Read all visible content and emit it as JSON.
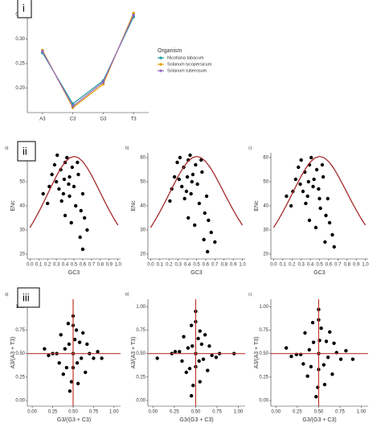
{
  "chart_data": [
    {
      "type": "line",
      "panel_label": "i",
      "categories": [
        "A3",
        "C3",
        "G3",
        "T3"
      ],
      "ylim": [
        0.15,
        0.36
      ],
      "yticks": [
        {
          "value": 0.2,
          "label": "0.20"
        },
        {
          "value": 0.25,
          "label": "0.25"
        },
        {
          "value": 0.3,
          "label": "0.30"
        },
        {
          "value": 0.35,
          "label": "0.35"
        }
      ],
      "legend_title": "Organism",
      "series": [
        {
          "name": "Nicotiana tabacum",
          "color": "#1b9e9e",
          "values": [
            0.272,
            0.168,
            0.215,
            0.345
          ]
        },
        {
          "name": "Solanum lycopersicum",
          "color": "#e69f00",
          "values": [
            0.277,
            0.16,
            0.208,
            0.353
          ]
        },
        {
          "name": "Solanum tuberosum",
          "color": "#9467bd",
          "values": [
            0.275,
            0.163,
            0.212,
            0.349
          ]
        }
      ]
    },
    {
      "type": "enc",
      "panel_label": "ii",
      "label": "a)",
      "xlabel": "GC3",
      "ylabel": "ENc",
      "xlim": [
        -0.03,
        1.03
      ],
      "ylim": [
        18,
        62
      ],
      "xticks": [
        {
          "value": 0,
          "label": "0.0"
        },
        {
          "value": 0.1,
          "label": "0.1"
        },
        {
          "value": 0.2,
          "label": "0.2"
        },
        {
          "value": 0.3,
          "label": "0.3"
        },
        {
          "value": 0.4,
          "label": "0.4"
        },
        {
          "value": 0.5,
          "label": "0.5"
        },
        {
          "value": 0.6,
          "label": "0.6"
        },
        {
          "value": 0.7,
          "label": "0.7"
        },
        {
          "value": 0.8,
          "label": "0.8"
        },
        {
          "value": 0.9,
          "label": "0.9"
        },
        {
          "value": 1,
          "label": "1.0"
        }
      ],
      "yticks": [
        20,
        30,
        40,
        50,
        60
      ],
      "x": [
        0.35,
        0.4,
        0.45,
        0.3,
        0.5,
        0.38,
        0.42,
        0.28,
        0.55,
        0.33,
        0.48,
        0.6,
        0.25,
        0.36,
        0.44,
        0.52,
        0.58,
        0.4,
        0.62,
        0.47,
        0.22,
        0.31,
        0.39,
        0.54,
        0.65,
        0.2,
        0.57,
        0.6,
        0.15,
        0.45
      ],
      "y": [
        55,
        58,
        52,
        50,
        48,
        45,
        60,
        57,
        53,
        47,
        56,
        45,
        53,
        42,
        49,
        40,
        38,
        36,
        35,
        33,
        48,
        61,
        51,
        58,
        30,
        41,
        27,
        22,
        45,
        44
      ],
      "curve_x": [
        0,
        0.05,
        0.1,
        0.15,
        0.2,
        0.25,
        0.3,
        0.35,
        0.4,
        0.45,
        0.5,
        0.55,
        0.6,
        0.65,
        0.7,
        0.75,
        0.8,
        0.85,
        0.9,
        0.95,
        1
      ],
      "curve_y": [
        31,
        34.09,
        37.47,
        41.08,
        44.85,
        48.65,
        52.3,
        55.56,
        58.17,
        59.88,
        60.5,
        59.98,
        58.37,
        55.86,
        52.7,
        49.15,
        45.45,
        41.78,
        38.27,
        34.99,
        32
      ]
    },
    {
      "type": "enc",
      "label": "b)",
      "xlabel": "GC3",
      "ylabel": "ENc",
      "xlim": [
        -0.03,
        1.03
      ],
      "ylim": [
        18,
        62
      ],
      "xticks": [
        {
          "value": 0,
          "label": "0.0"
        },
        {
          "value": 0.1,
          "label": "0.1"
        },
        {
          "value": 0.2,
          "label": "0.2"
        },
        {
          "value": 0.3,
          "label": "0.3"
        },
        {
          "value": 0.4,
          "label": "0.4"
        },
        {
          "value": 0.5,
          "label": "0.5"
        },
        {
          "value": 0.6,
          "label": "0.6"
        },
        {
          "value": 0.7,
          "label": "0.7"
        },
        {
          "value": 0.8,
          "label": "0.8"
        },
        {
          "value": 0.9,
          "label": "0.9"
        },
        {
          "value": 1,
          "label": "1.0"
        }
      ],
      "yticks": [
        20,
        30,
        40,
        50,
        60
      ],
      "x": [
        0.36,
        0.41,
        0.46,
        0.31,
        0.51,
        0.39,
        0.43,
        0.29,
        0.56,
        0.34,
        0.49,
        0.61,
        0.26,
        0.37,
        0.45,
        0.53,
        0.59,
        0.41,
        0.63,
        0.48,
        0.23,
        0.32,
        0.4,
        0.55,
        0.66,
        0.21,
        0.58,
        0.62,
        0.7,
        0.44
      ],
      "y": [
        56,
        59,
        53,
        51,
        49,
        46,
        61,
        58,
        54,
        48,
        57,
        44,
        52,
        43,
        50,
        41,
        37,
        35,
        34,
        32,
        47,
        60,
        52,
        59,
        29,
        42,
        26,
        21,
        25,
        45
      ],
      "curve_x": [
        0,
        0.05,
        0.1,
        0.15,
        0.2,
        0.25,
        0.3,
        0.35,
        0.4,
        0.45,
        0.5,
        0.55,
        0.6,
        0.65,
        0.7,
        0.75,
        0.8,
        0.85,
        0.9,
        0.95,
        1
      ],
      "curve_y": [
        31,
        34.09,
        37.47,
        41.08,
        44.85,
        48.65,
        52.3,
        55.56,
        58.17,
        59.88,
        60.5,
        59.98,
        58.37,
        55.86,
        52.7,
        49.15,
        45.45,
        41.78,
        38.27,
        34.99,
        32
      ]
    },
    {
      "type": "enc",
      "label": "c)",
      "xlabel": "GC3",
      "ylabel": "ENc",
      "xlim": [
        -0.03,
        1.03
      ],
      "ylim": [
        18,
        62
      ],
      "xticks": [
        {
          "value": 0,
          "label": "0.0"
        },
        {
          "value": 0.1,
          "label": "0.1"
        },
        {
          "value": 0.2,
          "label": "0.2"
        },
        {
          "value": 0.3,
          "label": "0.3"
        },
        {
          "value": 0.4,
          "label": "0.4"
        },
        {
          "value": 0.5,
          "label": "0.5"
        },
        {
          "value": 0.6,
          "label": "0.6"
        },
        {
          "value": 0.7,
          "label": "0.7"
        },
        {
          "value": 0.8,
          "label": "0.8"
        },
        {
          "value": 0.9,
          "label": "0.9"
        },
        {
          "value": 1,
          "label": "1.0"
        }
      ],
      "yticks": [
        20,
        30,
        40,
        50,
        60
      ],
      "x": [
        0.34,
        0.39,
        0.44,
        0.29,
        0.49,
        0.37,
        0.41,
        0.27,
        0.54,
        0.32,
        0.47,
        0.59,
        0.24,
        0.35,
        0.43,
        0.51,
        0.57,
        0.39,
        0.61,
        0.46,
        0.21,
        0.3,
        0.38,
        0.53,
        0.64,
        0.19,
        0.56,
        0.66,
        0.14,
        0.5
      ],
      "y": [
        54,
        57,
        51,
        49,
        47,
        44,
        60,
        56,
        52,
        46,
        55,
        43,
        51,
        41,
        48,
        39,
        36,
        34,
        33,
        31,
        46,
        59,
        50,
        57,
        28,
        40,
        25,
        23,
        44,
        43
      ],
      "curve_x": [
        0,
        0.05,
        0.1,
        0.15,
        0.2,
        0.25,
        0.3,
        0.35,
        0.4,
        0.45,
        0.5,
        0.55,
        0.6,
        0.65,
        0.7,
        0.75,
        0.8,
        0.85,
        0.9,
        0.95,
        1
      ],
      "curve_y": [
        31,
        34.09,
        37.47,
        41.08,
        44.85,
        48.65,
        52.3,
        55.56,
        58.17,
        59.88,
        60.5,
        59.98,
        58.37,
        55.86,
        52.7,
        49.15,
        45.45,
        41.78,
        38.27,
        34.99,
        32
      ]
    },
    {
      "type": "parity",
      "panel_label": "iii",
      "label": "a)",
      "xlabel": "G3/(G3 + C3)",
      "ylabel": "A3/(A3 + T3)",
      "xlim": [
        -0.06,
        1.08
      ],
      "ylim": [
        -0.06,
        1.08
      ],
      "xticks": [
        {
          "value": 0,
          "label": "0.00"
        },
        {
          "value": 0.25,
          "label": "0.25"
        },
        {
          "value": 0.5,
          "label": "0.50"
        },
        {
          "value": 0.75,
          "label": "0.75"
        },
        {
          "value": 1,
          "label": "1.00"
        }
      ],
      "yticks": [
        {
          "value": 0,
          "label": "0.00"
        },
        {
          "value": 0.25,
          "label": "0.25"
        },
        {
          "value": 0.5,
          "label": "0.50"
        },
        {
          "value": 0.75,
          "label": "0.75"
        },
        {
          "value": 1,
          "label": "1.00"
        }
      ],
      "reference_lines": {
        "x": 0.5,
        "y": 0.5
      },
      "x": [
        0.5,
        0.45,
        0.55,
        0.4,
        0.6,
        0.35,
        0.65,
        0.3,
        0.7,
        0.5,
        0.48,
        0.52,
        0.42,
        0.58,
        0.25,
        0.75,
        0.5,
        0.46,
        0.54,
        0.38,
        0.62,
        0.2,
        0.8,
        0.5,
        0.44,
        0.56,
        0.33,
        0.67,
        0.15,
        0.85
      ],
      "y": [
        0.5,
        0.6,
        0.4,
        0.55,
        0.45,
        0.7,
        0.3,
        0.5,
        0.5,
        0.8,
        0.2,
        0.65,
        0.35,
        0.62,
        0.5,
        0.45,
        0.9,
        0.1,
        0.75,
        0.28,
        0.72,
        0.48,
        0.52,
        0.35,
        0.82,
        0.18,
        0.4,
        0.6,
        0.55,
        0.45
      ]
    },
    {
      "type": "parity",
      "label": "b)",
      "xlabel": "G3/(G3 + C3)",
      "ylabel": "A3/(A3 + T3)",
      "xlim": [
        -0.06,
        1.08
      ],
      "ylim": [
        -0.06,
        1.08
      ],
      "xticks": [
        {
          "value": 0,
          "label": "0.00"
        },
        {
          "value": 0.25,
          "label": "0.25"
        },
        {
          "value": 0.5,
          "label": "0.50"
        },
        {
          "value": 0.75,
          "label": "0.75"
        },
        {
          "value": 1,
          "label": "1.00"
        }
      ],
      "yticks": [
        {
          "value": 0,
          "label": "0.00"
        },
        {
          "value": 0.25,
          "label": "0.25"
        },
        {
          "value": 0.5,
          "label": "0.50"
        },
        {
          "value": 0.75,
          "label": "0.75"
        },
        {
          "value": 1,
          "label": "1.00"
        }
      ],
      "reference_lines": {
        "x": 0.5,
        "y": 0.5
      },
      "x": [
        0.5,
        0.46,
        0.54,
        0.41,
        0.59,
        0.36,
        0.64,
        0.31,
        0.69,
        0.5,
        0.47,
        0.53,
        0.43,
        0.57,
        0.26,
        0.74,
        0.5,
        0.45,
        0.55,
        0.39,
        0.61,
        0.22,
        0.78,
        0.5,
        0.45,
        0.55,
        0.34,
        0.66,
        0.95,
        0.05
      ],
      "y": [
        0.5,
        0.58,
        0.42,
        0.56,
        0.44,
        0.68,
        0.32,
        0.52,
        0.48,
        0.84,
        0.16,
        0.66,
        0.34,
        0.6,
        0.52,
        0.46,
        0.95,
        0.05,
        0.74,
        0.3,
        0.7,
        0.5,
        0.5,
        0.36,
        0.8,
        0.2,
        0.42,
        0.58,
        0.5,
        0.45
      ]
    },
    {
      "type": "parity",
      "label": "c)",
      "xlabel": "G3/(G3 + C3)",
      "ylabel": "A3/(A3 + T3)",
      "xlim": [
        -0.06,
        1.08
      ],
      "ylim": [
        -0.06,
        1.08
      ],
      "xticks": [
        {
          "value": 0,
          "label": "0.00"
        },
        {
          "value": 0.25,
          "label": "0.25"
        },
        {
          "value": 0.5,
          "label": "0.50"
        },
        {
          "value": 0.75,
          "label": "0.75"
        },
        {
          "value": 1,
          "label": "1.00"
        }
      ],
      "yticks": [
        {
          "value": 0,
          "label": "0.00"
        },
        {
          "value": 0.25,
          "label": "0.25"
        },
        {
          "value": 0.5,
          "label": "0.50"
        },
        {
          "value": 0.75,
          "label": "0.75"
        },
        {
          "value": 1,
          "label": "1.00"
        }
      ],
      "reference_lines": {
        "x": 0.5,
        "y": 0.5
      },
      "x": [
        0.5,
        0.44,
        0.56,
        0.39,
        0.61,
        0.34,
        0.66,
        0.29,
        0.71,
        0.5,
        0.49,
        0.51,
        0.41,
        0.59,
        0.24,
        0.76,
        0.5,
        0.47,
        0.53,
        0.37,
        0.63,
        0.18,
        0.82,
        0.5,
        0.43,
        0.57,
        0.32,
        0.68,
        0.12,
        0.9
      ],
      "y": [
        0.5,
        0.62,
        0.38,
        0.54,
        0.46,
        0.72,
        0.28,
        0.49,
        0.51,
        0.86,
        0.14,
        0.64,
        0.36,
        0.63,
        0.49,
        0.44,
        0.97,
        0.04,
        0.77,
        0.26,
        0.73,
        0.47,
        0.53,
        0.33,
        0.83,
        0.17,
        0.39,
        0.61,
        0.56,
        0.44
      ]
    }
  ]
}
